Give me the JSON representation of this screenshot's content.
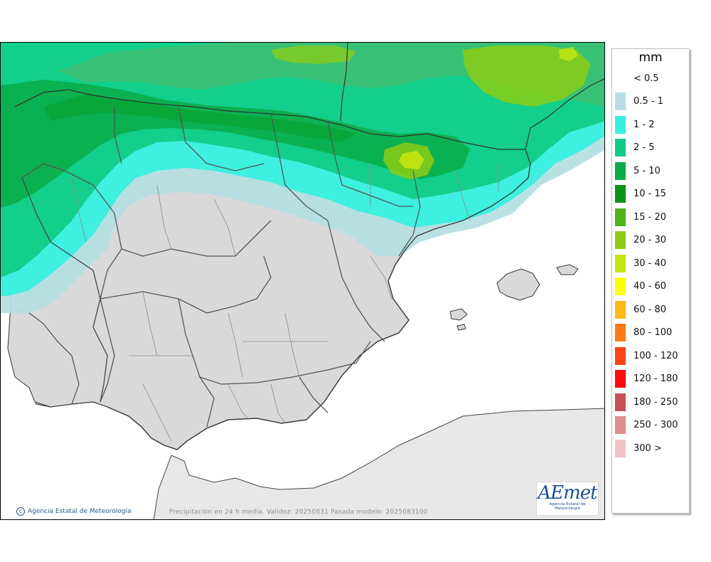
{
  "legend": {
    "unit": "mm",
    "items": [
      {
        "label": "< 0.5",
        "color": "#ffffff"
      },
      {
        "label": "0.5 - 1",
        "color": "#b5dfe3"
      },
      {
        "label": "1 - 2",
        "color": "#37f0df"
      },
      {
        "label": "2 - 5",
        "color": "#10cc86"
      },
      {
        "label": "5 - 10",
        "color": "#0aad4a"
      },
      {
        "label": "10 - 15",
        "color": "#069412"
      },
      {
        "label": "15 - 20",
        "color": "#4eb316"
      },
      {
        "label": "20 - 30",
        "color": "#8ccc15"
      },
      {
        "label": "30 - 40",
        "color": "#c6e610"
      },
      {
        "label": "40 - 60",
        "color": "#ffff00"
      },
      {
        "label": "60 - 80",
        "color": "#ffb914"
      },
      {
        "label": "80 - 100",
        "color": "#ff7a14"
      },
      {
        "label": "100 - 120",
        "color": "#ff4414"
      },
      {
        "label": "120 - 180",
        "color": "#ff0a0a"
      },
      {
        "label": "180 - 250",
        "color": "#c94f52"
      },
      {
        "label": "250 - 300",
        "color": "#e08c8c"
      },
      {
        "label": "300 >",
        "color": "#f0c4c4"
      }
    ]
  },
  "footer": {
    "copyright": "Agencia Estatal de Meteorología",
    "caption": "Precipitación en 24 h media. Validez: 20250831 Pasada modelo: 2025083100"
  },
  "logo": {
    "word_a": "A",
    "word_b": "Emet",
    "subtitle": "Agencia Estatal de Meteorología"
  },
  "map_colors": {
    "land": "#d9d9d9",
    "africa": "#e8e8e8"
  }
}
